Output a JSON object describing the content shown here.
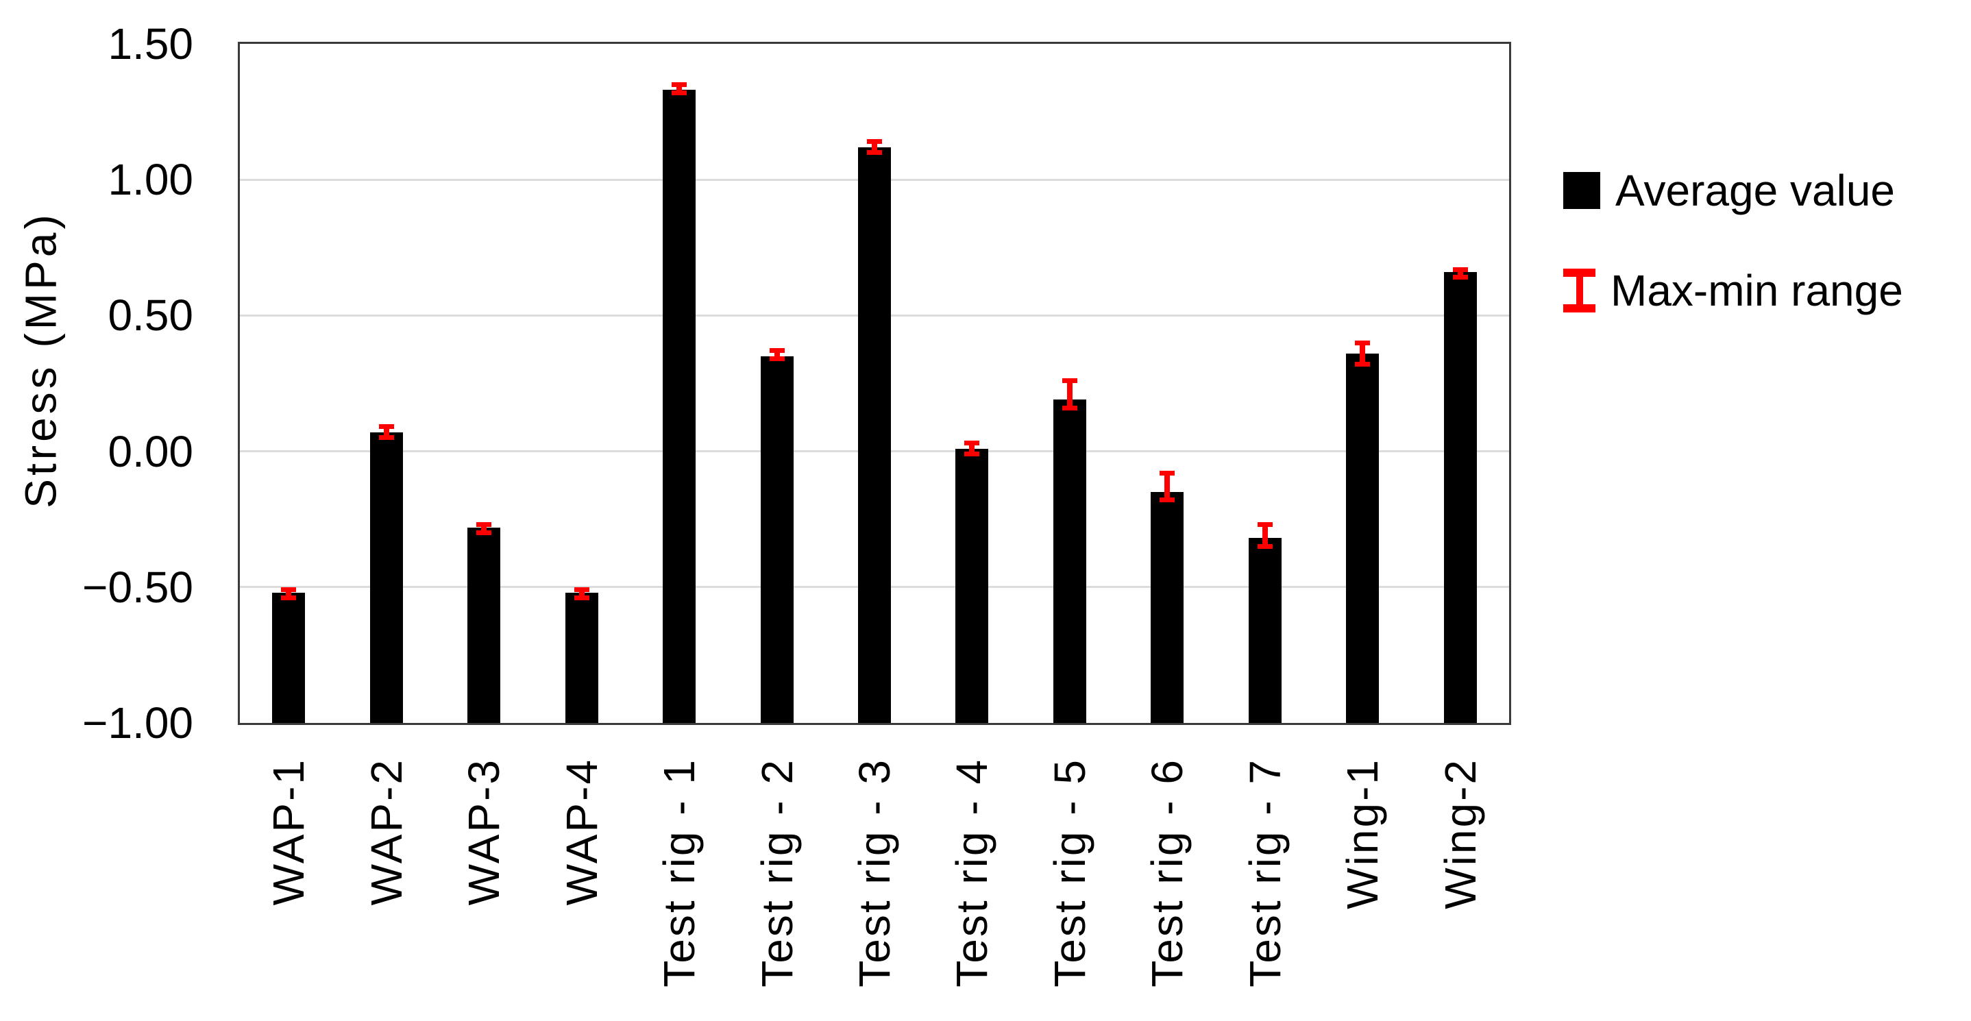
{
  "chart_data": {
    "type": "bar",
    "title": "",
    "ylabel": "Stress (MPa)",
    "xlabel": "",
    "categories": [
      "WAP-1",
      "WAP-2",
      "WAP-3",
      "WAP-4",
      "Test rig - 1",
      "Test rig - 2",
      "Test rig - 3",
      "Test rig - 4",
      "Test rig - 5",
      "Test rig - 6",
      "Test rig - 7",
      "Wing-1",
      "Wing-2"
    ],
    "series": [
      {
        "name": "Average value",
        "color": "#000000",
        "values": [
          -0.52,
          0.07,
          -0.28,
          -0.52,
          1.33,
          0.35,
          1.12,
          0.01,
          0.19,
          -0.15,
          -0.32,
          0.36,
          0.66
        ]
      }
    ],
    "error_range": {
      "name": "Max-min range",
      "color": "#ff0000",
      "max": [
        -0.51,
        0.09,
        -0.27,
        -0.51,
        1.35,
        0.37,
        1.14,
        0.03,
        0.26,
        -0.08,
        -0.27,
        0.4,
        0.67
      ],
      "min": [
        -0.54,
        0.05,
        -0.3,
        -0.54,
        1.32,
        0.34,
        1.1,
        -0.01,
        0.16,
        -0.18,
        -0.35,
        0.32,
        0.64
      ]
    },
    "ylim": [
      -1.0,
      1.5
    ],
    "yticks": [
      1.5,
      1.0,
      0.5,
      0.0,
      -0.5,
      -1.0
    ],
    "ytick_labels": [
      "1.50",
      "1.00",
      "0.50",
      "0.00",
      "−0.50",
      "−1.00"
    ],
    "grid": true,
    "legend_position": "right",
    "bars_drawn_from": "axis-minimum",
    "background_color": "#ffffff",
    "grid_color": "#dcdcdc",
    "frame_color": "#3a3a3a"
  },
  "legend": {
    "items": [
      {
        "label": "Average value",
        "marker": "black-square"
      },
      {
        "label": "Max-min range",
        "marker": "red-error-bar"
      }
    ]
  }
}
